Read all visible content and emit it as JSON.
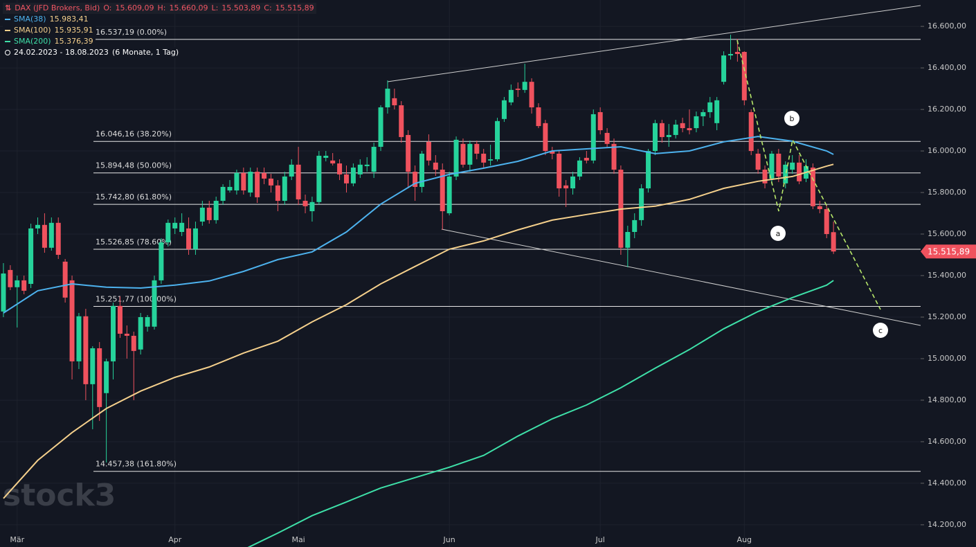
{
  "chart_data": {
    "type": "candlestick",
    "ylim": [
      14093,
      16727
    ],
    "xlim": [
      -0.5,
      133.7
    ],
    "yticks": [
      {
        "value": 14200,
        "label": "14.200,00"
      },
      {
        "value": 14400,
        "label": "14.400,00"
      },
      {
        "value": 14600,
        "label": "14.600,00"
      },
      {
        "value": 14800,
        "label": "14.800,00"
      },
      {
        "value": 15000,
        "label": "15.000,00"
      },
      {
        "value": 15200,
        "label": "15.200,00"
      },
      {
        "value": 15400,
        "label": "15.400,00"
      },
      {
        "value": 15600,
        "label": "15.600,00"
      },
      {
        "value": 15800,
        "label": "15.800,00"
      },
      {
        "value": 16000,
        "label": "16.000,00"
      },
      {
        "value": 16200,
        "label": "16.200,00"
      },
      {
        "value": 16400,
        "label": "16.400,00"
      },
      {
        "value": 16600,
        "label": "16.600,00"
      }
    ],
    "xticks": [
      {
        "value": 2,
        "label": "Mär"
      },
      {
        "value": 25,
        "label": "Apr"
      },
      {
        "value": 43,
        "label": "Mai"
      },
      {
        "value": 65,
        "label": "Jun"
      },
      {
        "value": 87,
        "label": "Jul"
      },
      {
        "value": 108,
        "label": "Aug"
      }
    ],
    "grid": true,
    "up_color": "#26d39b",
    "down_color": "#f0525e",
    "legend": {
      "title": "DAX (JFD Brokers, Bid)",
      "ohlc_names": [
        "O:",
        "H:",
        "L:",
        "C:"
      ],
      "ohlc_labels": [
        "15.609,09",
        "15.660,09",
        "15.503,89",
        "15.515,89"
      ],
      "range": "24.02.2023 - 18.08.2023",
      "range_note": "(6 Monate, 1 Tag)"
    },
    "watermark": "stock3",
    "wave_labels": [
      "a",
      "b",
      "c"
    ],
    "fib": [
      {
        "value": 16537.19,
        "label": "16.537,19 (0.00%)"
      },
      {
        "value": 16046.16,
        "label": "16.046,16 (38.20%)"
      },
      {
        "value": 15894.48,
        "label": "15.894,48 (50.00%)"
      },
      {
        "value": 15742.8,
        "label": "15.742,80 (61.80%)"
      },
      {
        "value": 15526.85,
        "label": "15.526,85 (78.60%)"
      },
      {
        "value": 15251.77,
        "label": "15.251,77 (100.00%)"
      },
      {
        "value": 14457.38,
        "label": "14.457,38 (161.80%)"
      }
    ],
    "candles": [
      [
        15227,
        15460,
        15200,
        15410
      ],
      [
        15427,
        15450,
        15330,
        15344
      ],
      [
        15344,
        15400,
        15150,
        15377
      ],
      [
        15377,
        15400,
        15310,
        15327
      ],
      [
        15360,
        15650,
        15340,
        15627
      ],
      [
        15627,
        15680,
        15600,
        15644
      ],
      [
        15644,
        15700,
        15510,
        15534
      ],
      [
        15534,
        15680,
        15520,
        15654
      ],
      [
        15654,
        15680,
        15480,
        15500
      ],
      [
        15467,
        15480,
        15270,
        15294
      ],
      [
        15377,
        15400,
        14900,
        14987
      ],
      [
        14987,
        15220,
        14950,
        15204
      ],
      [
        15204,
        15240,
        14800,
        14877
      ],
      [
        14877,
        15060,
        14660,
        15050
      ],
      [
        15050,
        15080,
        14700,
        14767
      ],
      [
        14834,
        15000,
        14500,
        14987
      ],
      [
        14987,
        15270,
        14900,
        15254
      ],
      [
        15254,
        15300,
        15100,
        15120
      ],
      [
        15120,
        15160,
        15000,
        15110
      ],
      [
        15110,
        15130,
        14800,
        15037
      ],
      [
        15044,
        15220,
        15020,
        15200
      ],
      [
        15154,
        15210,
        15130,
        15200
      ],
      [
        15154,
        15400,
        15140,
        15377
      ],
      [
        15377,
        15580,
        15360,
        15560
      ],
      [
        15560,
        15670,
        15540,
        15654
      ],
      [
        15627,
        15680,
        15600,
        15654
      ],
      [
        15610,
        15700,
        15590,
        15654
      ],
      [
        15627,
        15680,
        15500,
        15527
      ],
      [
        15527,
        15660,
        15500,
        15627
      ],
      [
        15660,
        15760,
        15640,
        15727
      ],
      [
        15727,
        15760,
        15650,
        15667
      ],
      [
        15667,
        15780,
        15650,
        15760
      ],
      [
        15760,
        15840,
        15740,
        15827
      ],
      [
        15810,
        15860,
        15800,
        15827
      ],
      [
        15810,
        15910,
        15790,
        15894
      ],
      [
        15894,
        15920,
        15790,
        15810
      ],
      [
        15800,
        15920,
        15780,
        15900
      ],
      [
        15900,
        15920,
        15750,
        15777
      ],
      [
        15894,
        15920,
        15840,
        15867
      ],
      [
        15867,
        15890,
        15800,
        15834
      ],
      [
        15834,
        15860,
        15710,
        15760
      ],
      [
        15760,
        15900,
        15740,
        15877
      ],
      [
        15877,
        15960,
        15860,
        15934
      ],
      [
        15934,
        16020,
        15740,
        15767
      ],
      [
        15760,
        15790,
        15700,
        15734
      ],
      [
        15710,
        15780,
        15660,
        15754
      ],
      [
        15754,
        16000,
        15740,
        15977
      ],
      [
        15967,
        16000,
        15950,
        15977
      ],
      [
        15954,
        15990,
        15930,
        15940
      ],
      [
        15940,
        15960,
        15860,
        15887
      ],
      [
        15887,
        15930,
        15800,
        15844
      ],
      [
        15844,
        15940,
        15830,
        15920
      ],
      [
        15887,
        15960,
        15870,
        15934
      ],
      [
        15927,
        15970,
        15900,
        15934
      ],
      [
        15900,
        16040,
        15870,
        16020
      ],
      [
        16020,
        16220,
        16000,
        16210
      ],
      [
        16210,
        16340,
        16180,
        16300
      ],
      [
        16254,
        16300,
        16200,
        16220
      ],
      [
        16220,
        16240,
        16040,
        16067
      ],
      [
        16077,
        16100,
        15820,
        15900
      ],
      [
        15900,
        15930,
        15760,
        15827
      ],
      [
        15827,
        16000,
        15800,
        15987
      ],
      [
        16044,
        16080,
        15930,
        15954
      ],
      [
        15944,
        15980,
        15880,
        15910
      ],
      [
        15910,
        15940,
        15620,
        15710
      ],
      [
        15700,
        15900,
        15690,
        15877
      ],
      [
        15877,
        16070,
        15860,
        16054
      ],
      [
        16034,
        16060,
        15920,
        15934
      ],
      [
        15934,
        16050,
        15900,
        16034
      ],
      [
        16034,
        16050,
        15960,
        15987
      ],
      [
        15987,
        16010,
        15920,
        15944
      ],
      [
        15954,
        16030,
        15930,
        15960
      ],
      [
        15960,
        16160,
        15950,
        16144
      ],
      [
        16154,
        16260,
        16140,
        16244
      ],
      [
        16234,
        16320,
        16220,
        16294
      ],
      [
        16300,
        16330,
        16260,
        16294
      ],
      [
        16294,
        16420,
        16280,
        16333
      ],
      [
        16333,
        16350,
        16180,
        16210
      ],
      [
        16210,
        16230,
        16110,
        16120
      ],
      [
        16134,
        16150,
        15980,
        16000
      ],
      [
        16000,
        16020,
        15960,
        15987
      ],
      [
        15987,
        16000,
        15780,
        15820
      ],
      [
        15834,
        15860,
        15730,
        15820
      ],
      [
        15820,
        15900,
        15790,
        15877
      ],
      [
        15877,
        15970,
        15860,
        15954
      ],
      [
        15967,
        16000,
        15940,
        15954
      ],
      [
        15954,
        16200,
        15940,
        16177
      ],
      [
        16187,
        16210,
        16080,
        16100
      ],
      [
        16087,
        16110,
        16020,
        16034
      ],
      [
        16034,
        16060,
        15890,
        15910
      ],
      [
        15910,
        15930,
        15500,
        15534
      ],
      [
        15534,
        15640,
        15440,
        15610
      ],
      [
        15610,
        15700,
        15580,
        15667
      ],
      [
        15667,
        15840,
        15640,
        15820
      ],
      [
        15820,
        16010,
        15800,
        16000
      ],
      [
        16000,
        16150,
        15980,
        16134
      ],
      [
        16134,
        16150,
        16040,
        16067
      ],
      [
        16067,
        16130,
        16020,
        16077
      ],
      [
        16077,
        16150,
        16060,
        16127
      ],
      [
        16134,
        16160,
        16090,
        16110
      ],
      [
        16110,
        16200,
        16080,
        16100
      ],
      [
        16110,
        16190,
        16090,
        16167
      ],
      [
        16167,
        16200,
        16120,
        16187
      ],
      [
        16187,
        16260,
        16160,
        16234
      ],
      [
        16134,
        16260,
        16100,
        16244
      ],
      [
        16333,
        16480,
        16320,
        16460
      ],
      [
        16460,
        16560,
        16440,
        16467
      ],
      [
        16477,
        16540,
        16430,
        16467
      ],
      [
        16477,
        16480,
        16220,
        16244
      ],
      [
        16187,
        16200,
        15980,
        16000
      ],
      [
        15987,
        16010,
        15890,
        15910
      ],
      [
        15910,
        15930,
        15820,
        15844
      ],
      [
        15867,
        16000,
        15840,
        15987
      ],
      [
        15987,
        16010,
        15850,
        15877
      ],
      [
        15844,
        15950,
        15820,
        15934
      ],
      [
        15910,
        15980,
        15890,
        15944
      ],
      [
        15944,
        15980,
        15840,
        15854
      ],
      [
        15867,
        15960,
        15850,
        15927
      ],
      [
        15920,
        15940,
        15720,
        15734
      ],
      [
        15734,
        15760,
        15700,
        15720
      ],
      [
        15720,
        15740,
        15580,
        15600
      ],
      [
        15609.09,
        15660.09,
        15503.89,
        15515.89
      ]
    ],
    "series": [
      {
        "name": "SMA(38)",
        "color": "#4db2ee",
        "legend_value_label": "15.983,41",
        "x": [
          0,
          5,
          10,
          15,
          20,
          25,
          30,
          35,
          40,
          45,
          50,
          55,
          60,
          65,
          70,
          75,
          80,
          85,
          90,
          95,
          100,
          105,
          110,
          115,
          120,
          121
        ],
        "values": [
          15220,
          15327,
          15360,
          15344,
          15340,
          15354,
          15374,
          15420,
          15477,
          15514,
          15610,
          15744,
          15844,
          15887,
          15917,
          15950,
          16000,
          16010,
          16020,
          15987,
          16000,
          16044,
          16070,
          16047,
          16000,
          15983.41
        ]
      },
      {
        "name": "SMA(100)",
        "color": "#f5d08c",
        "legend_value_label": "15.935,91",
        "x": [
          0,
          5,
          10,
          15,
          20,
          25,
          30,
          35,
          40,
          45,
          50,
          55,
          60,
          65,
          70,
          75,
          80,
          85,
          90,
          95,
          100,
          105,
          110,
          115,
          120,
          121
        ],
        "values": [
          14327,
          14510,
          14644,
          14760,
          14844,
          14910,
          14960,
          15027,
          15084,
          15177,
          15260,
          15360,
          15444,
          15527,
          15567,
          15620,
          15667,
          15694,
          15720,
          15734,
          15767,
          15820,
          15854,
          15877,
          15927,
          15935.91
        ]
      },
      {
        "name": "SMA(200)",
        "color": "#3ee0a8",
        "legend_value_label": "15.376,39",
        "x": [
          35,
          40,
          45,
          50,
          55,
          60,
          65,
          70,
          75,
          80,
          85,
          90,
          95,
          100,
          105,
          110,
          115,
          120,
          121
        ],
        "values": [
          14080,
          14160,
          14244,
          14310,
          14377,
          14427,
          14477,
          14534,
          14627,
          14710,
          14777,
          14860,
          14954,
          15044,
          15144,
          15227,
          15294,
          15354,
          15376.39
        ]
      }
    ]
  }
}
